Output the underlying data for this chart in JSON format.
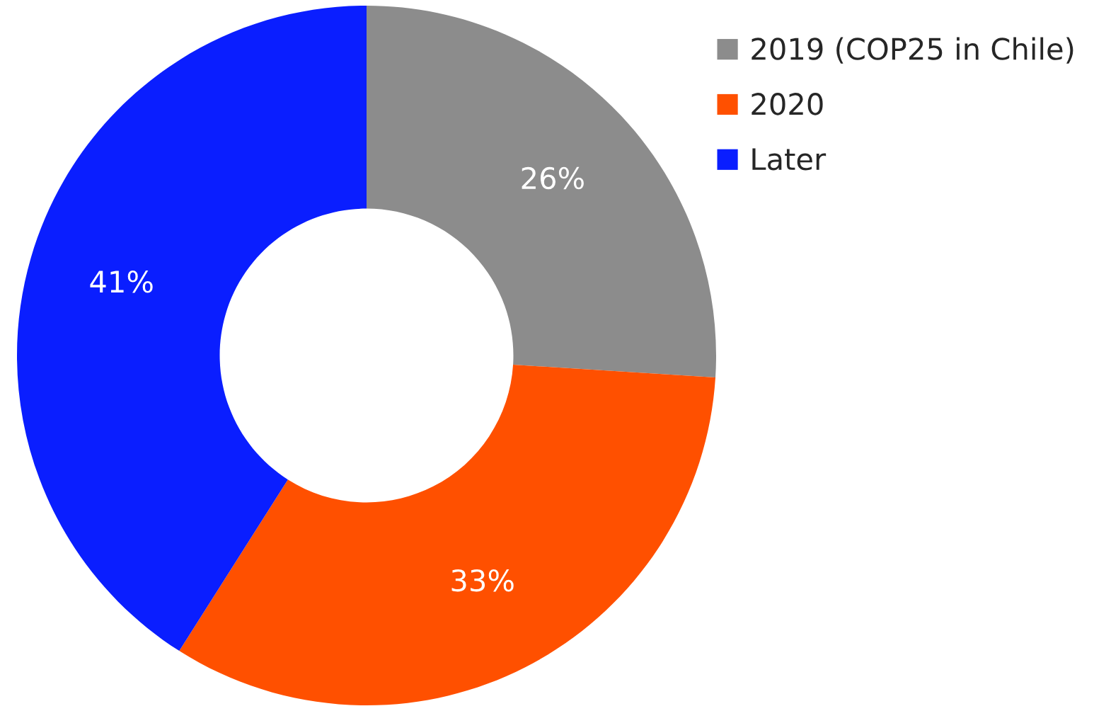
{
  "chart_data": {
    "type": "donut",
    "categories": [
      "2019 (COP25 in Chile)",
      "2020",
      "Later"
    ],
    "values": [
      26,
      33,
      41
    ],
    "colors": [
      "#8c8c8c",
      "#ff5000",
      "#0a1eff"
    ],
    "value_labels": [
      "26%",
      "33%",
      "41%"
    ],
    "legend": "top right"
  }
}
